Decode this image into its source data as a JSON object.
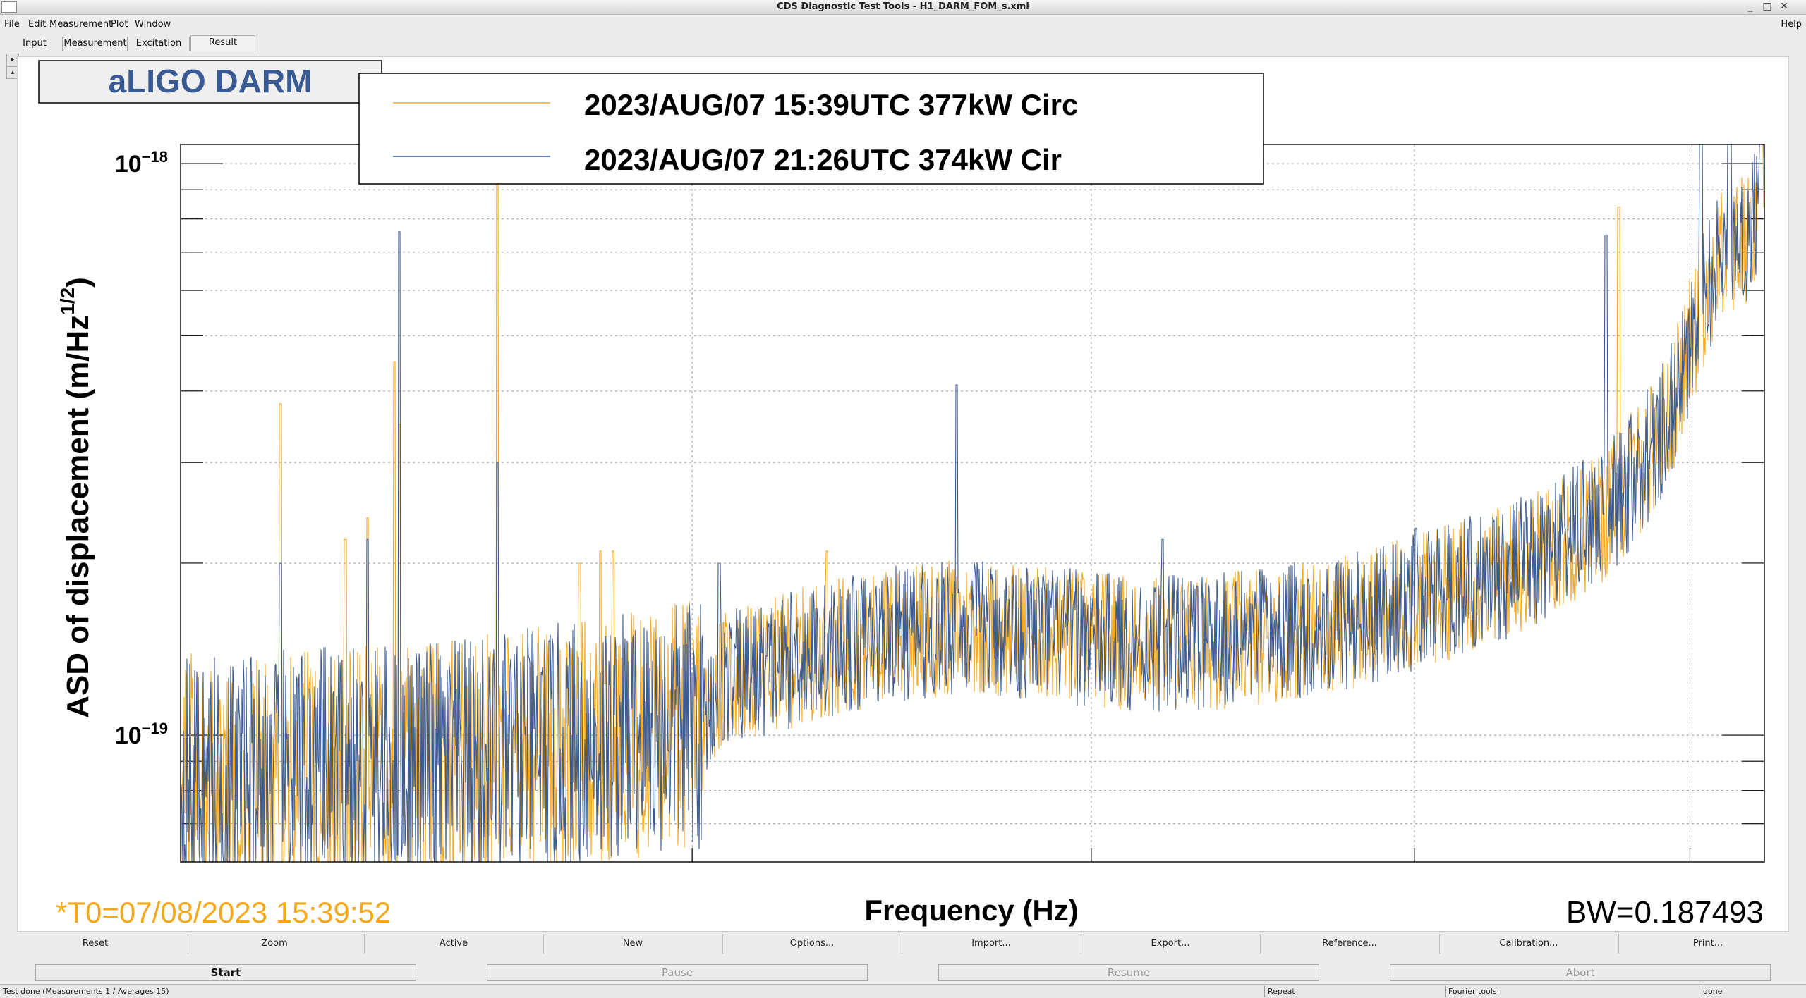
{
  "window": {
    "title": "CDS Diagnostic Test Tools - H1_DARM_FOM_s.xml",
    "controls": [
      "_",
      "□",
      "✕"
    ]
  },
  "menu": [
    "File",
    "Edit",
    "Measurement",
    "Plot",
    "Window"
  ],
  "menu_help": "Help",
  "tabs": [
    "Input",
    "Measurement",
    "Excitation",
    "Result"
  ],
  "active_tab": "Result",
  "pad_arrows": [
    "▸",
    "▴"
  ],
  "plot": {
    "heading": "aLIGO DARM",
    "footer_time": "*T0=07/08/2023 15:39:52",
    "bandwidth": "BW=0.187493"
  },
  "chart_data": {
    "type": "line",
    "xlabel": "Frequency (Hz)",
    "ylabel": "ASD of displacement (m/Hz^1/2)",
    "ylabel_main": "ASD of displacement (m/Hz",
    "ylabel_sup": "1/2",
    "ylabel_close": ")",
    "yscale": "log",
    "ylim": [
      6e-20,
      1.08e-18
    ],
    "xlim": [
      0,
      1
    ],
    "x_note": "frequency axis tick labels not visible",
    "ytick_labels": [
      {
        "base": "10",
        "exp": "−18",
        "value": 1e-18
      },
      {
        "base": "10",
        "exp": "−19",
        "value": 1e-19
      }
    ],
    "grid": true,
    "legend_position": "top",
    "colors": {
      "series0": "#f5a81c",
      "series1": "#3b5b93"
    },
    "series": [
      {
        "name": "2023/AUG/07 15:39UTC 377kW Circ",
        "color": "#f5a81c"
      },
      {
        "name": "2023/AUG/07 21:26UTC 374kW Cir",
        "color": "#3b5b93"
      }
    ],
    "spectrum": [
      [
        0.0,
        8.4e-20
      ],
      [
        0.05,
        8.5e-20
      ],
      [
        0.1,
        8.6e-20
      ],
      [
        0.15,
        8.8e-20
      ],
      [
        0.2,
        9.1e-20
      ],
      [
        0.25,
        9.6e-20
      ],
      [
        0.3,
        1.02e-19
      ],
      [
        0.33,
        1.05e-19
      ],
      [
        0.34,
        1.25e-19
      ],
      [
        0.36,
        1.28e-19
      ],
      [
        0.4,
        1.4e-19
      ],
      [
        0.45,
        1.5e-19
      ],
      [
        0.5,
        1.55e-19
      ],
      [
        0.55,
        1.5e-19
      ],
      [
        0.6,
        1.45e-19
      ],
      [
        0.65,
        1.45e-19
      ],
      [
        0.7,
        1.52e-19
      ],
      [
        0.75,
        1.6e-19
      ],
      [
        0.8,
        1.78e-19
      ],
      [
        0.85,
        2e-19
      ],
      [
        0.88,
        2.25e-19
      ],
      [
        0.9,
        2.45e-19
      ],
      [
        0.92,
        2.9e-19
      ],
      [
        0.94,
        3.6e-19
      ],
      [
        0.95,
        4.5e-19
      ],
      [
        0.96,
        5.6e-19
      ],
      [
        0.97,
        6.7e-19
      ],
      [
        0.98,
        7e-19
      ],
      [
        0.99,
        7.6e-19
      ],
      [
        1.0,
        9e-19
      ]
    ],
    "peaks_series0": [
      [
        0.063,
        3.8e-19
      ],
      [
        0.104,
        2.2e-19
      ],
      [
        0.118,
        2.4e-19
      ],
      [
        0.135,
        4.5e-19
      ],
      [
        0.138,
        3.5e-19
      ],
      [
        0.2,
        1.2e-18
      ],
      [
        0.252,
        2e-19
      ],
      [
        0.265,
        2.1e-19
      ],
      [
        0.273,
        2.1e-19
      ],
      [
        0.408,
        2.1e-19
      ],
      [
        0.62,
        2e-19
      ],
      [
        0.735,
        1.6e-19
      ],
      [
        0.79,
        2e-19
      ],
      [
        0.908,
        8.4e-19
      ],
      [
        0.96,
        3.7e-19
      ]
    ],
    "peaks_series1": [
      [
        0.063,
        2e-19
      ],
      [
        0.118,
        2.2e-19
      ],
      [
        0.138,
        7.6e-19
      ],
      [
        0.2,
        3e-19
      ],
      [
        0.34,
        2e-19
      ],
      [
        0.49,
        4.1e-19
      ],
      [
        0.62,
        2.2e-19
      ],
      [
        0.78,
        2.3e-19
      ],
      [
        0.9,
        7.5e-19
      ],
      [
        0.96,
        3.9e-19
      ]
    ],
    "high_peaks": [
      [
        0.96,
        1.2e-18
      ],
      [
        0.978,
        1.2e-18
      ],
      [
        0.998,
        1.1e-18
      ]
    ]
  },
  "toolbar": [
    "Reset",
    "Zoom",
    "Active",
    "New",
    "Options...",
    "Import...",
    "Export...",
    "Reference...",
    "Calibration...",
    "Print..."
  ],
  "controls": [
    {
      "label": "Start",
      "enabled": true
    },
    {
      "label": "Pause",
      "enabled": false
    },
    {
      "label": "Resume",
      "enabled": false
    },
    {
      "label": "Abort",
      "enabled": false
    }
  ],
  "status": {
    "message": "Test done (Measurements 1 / Averages 15)",
    "repeat": "Repeat",
    "tools": "Fourier tools",
    "state": "done"
  }
}
